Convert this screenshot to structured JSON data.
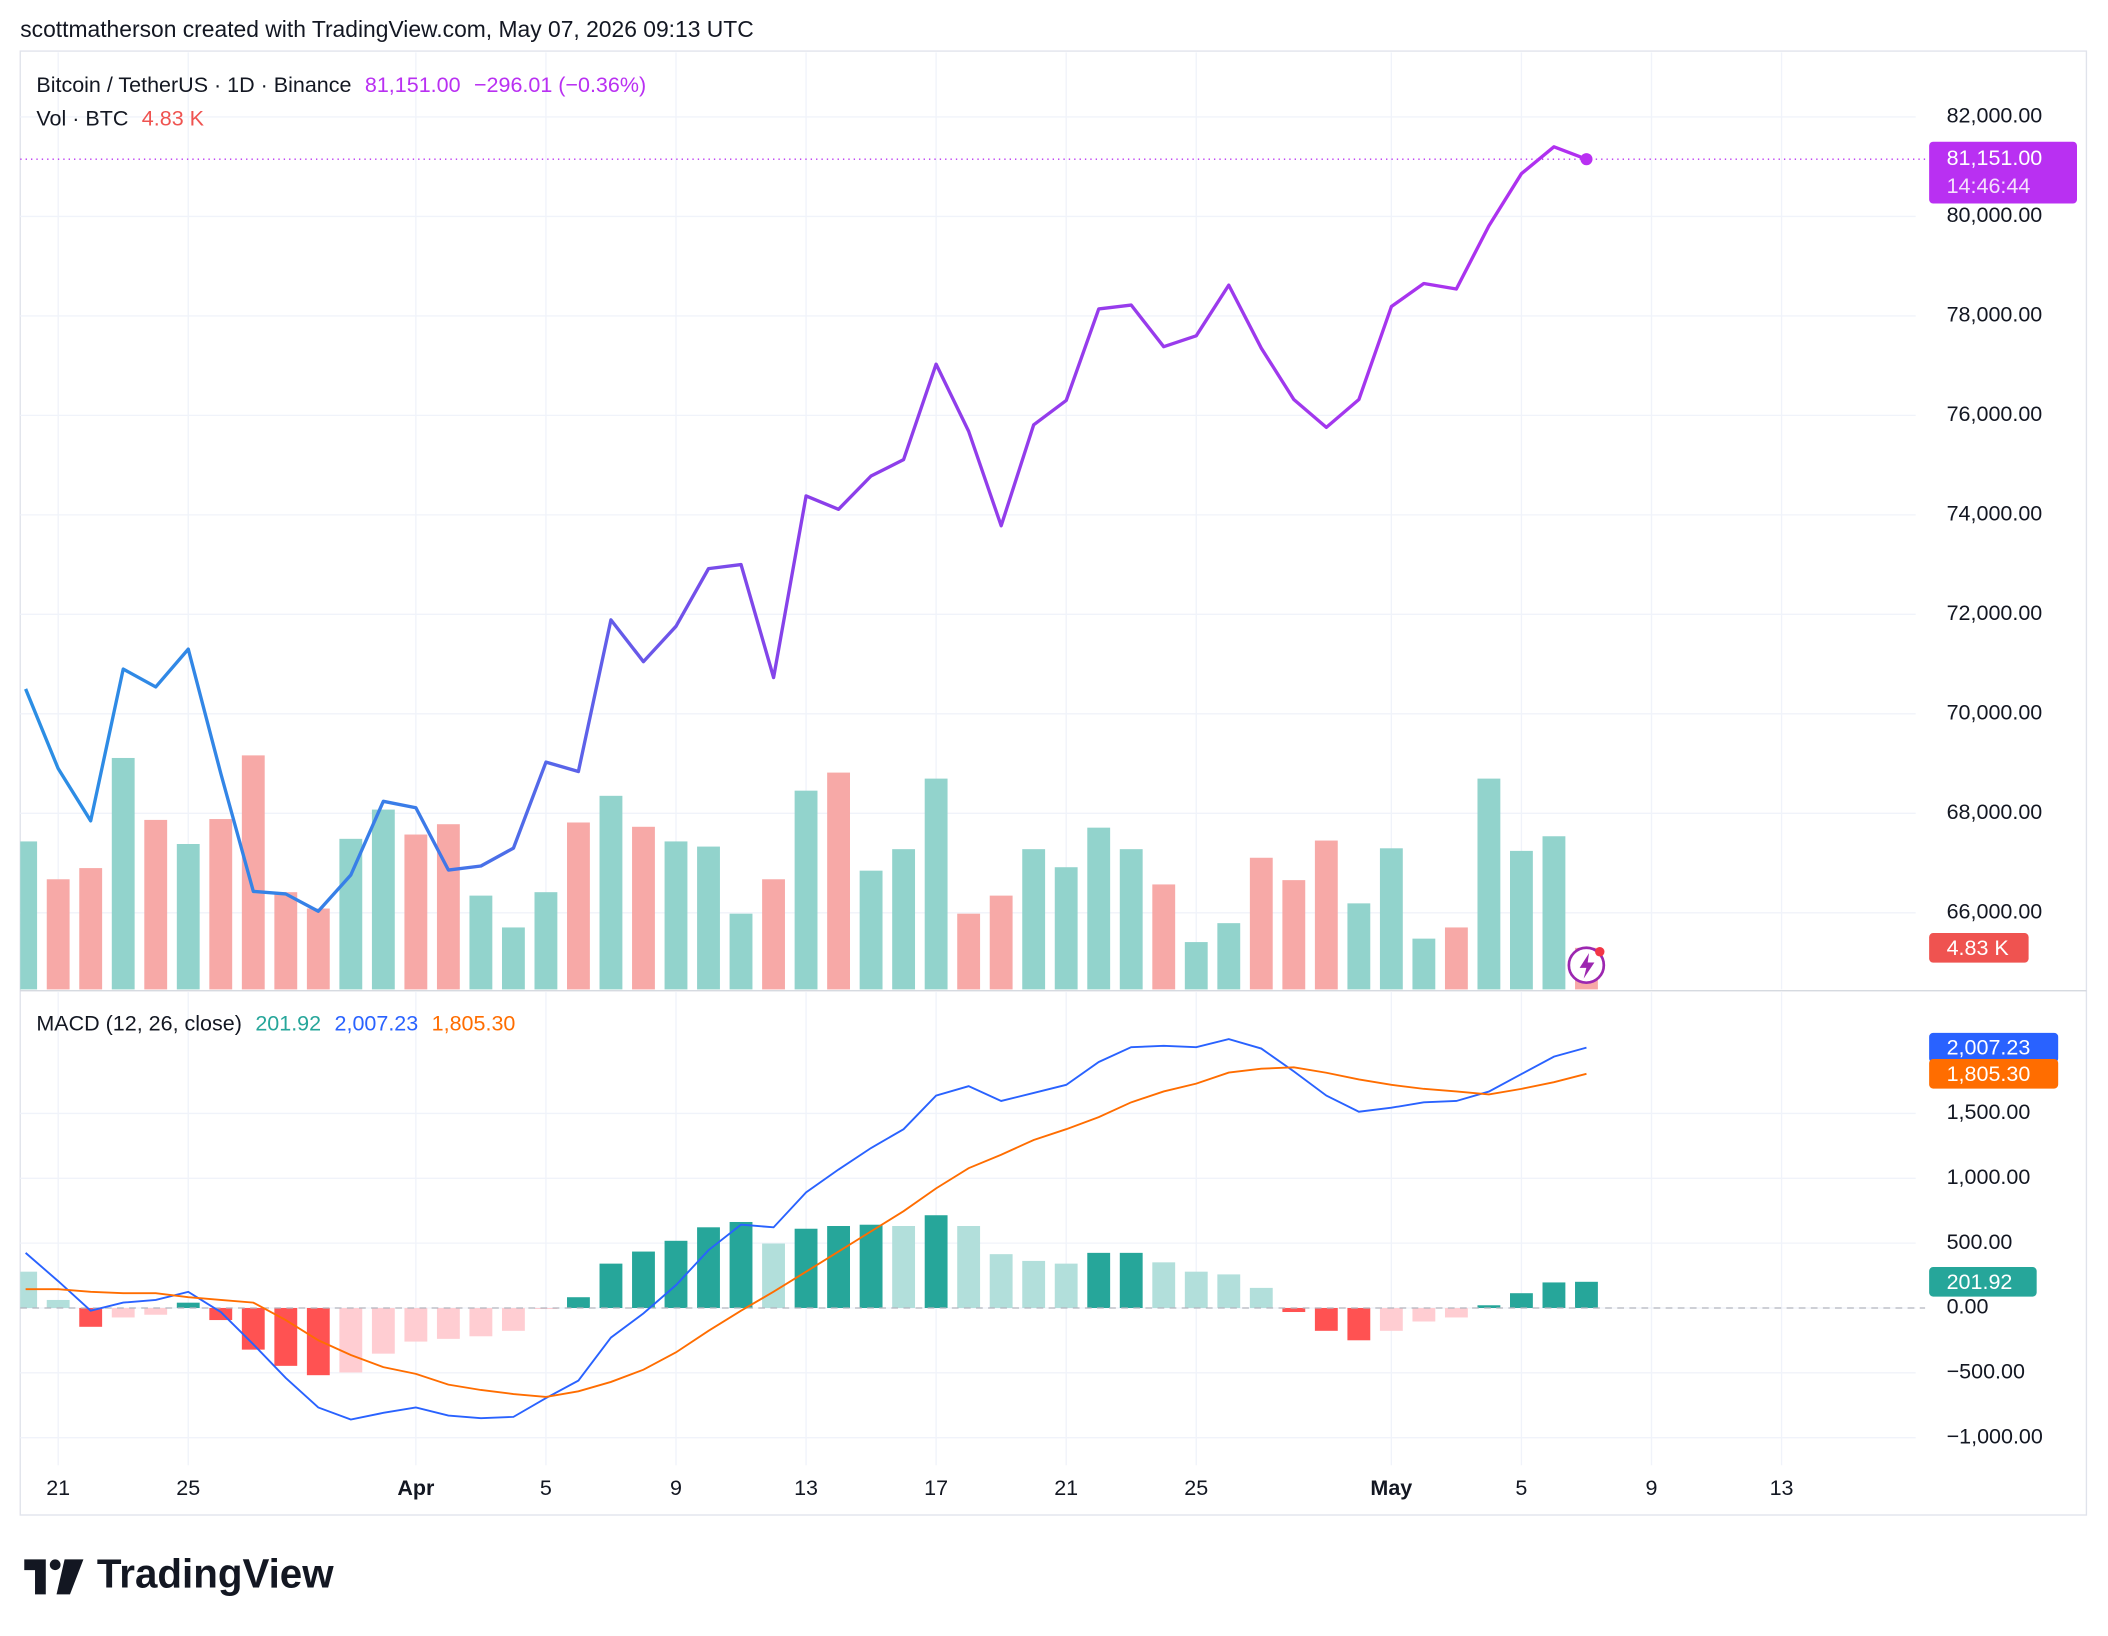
{
  "header": {
    "attribution": "scottmatherson created with TradingView.com, May 07, 2026 09:13 UTC"
  },
  "footer": {
    "logo": "TradingView"
  },
  "chart_data": [
    {
      "type": "line",
      "title": "Bitcoin / TetherUS · 1D · Binance",
      "last_label": "81,151.00",
      "change_label": "−296.01 (−0.36%)",
      "countdown": "14:46:44",
      "x": [
        "2026-03-20",
        "2026-03-21",
        "2026-03-22",
        "2026-03-23",
        "2026-03-24",
        "2026-03-25",
        "2026-03-26",
        "2026-03-27",
        "2026-03-28",
        "2026-03-29",
        "2026-03-30",
        "2026-03-31",
        "2026-04-01",
        "2026-04-02",
        "2026-04-03",
        "2026-04-04",
        "2026-04-05",
        "2026-04-06",
        "2026-04-07",
        "2026-04-08",
        "2026-04-09",
        "2026-04-10",
        "2026-04-11",
        "2026-04-12",
        "2026-04-13",
        "2026-04-14",
        "2026-04-15",
        "2026-04-16",
        "2026-04-17",
        "2026-04-18",
        "2026-04-19",
        "2026-04-20",
        "2026-04-21",
        "2026-04-22",
        "2026-04-23",
        "2026-04-24",
        "2026-04-25",
        "2026-04-26",
        "2026-04-27",
        "2026-04-28",
        "2026-04-29",
        "2026-04-30",
        "2026-05-01",
        "2026-05-02",
        "2026-05-03",
        "2026-05-04",
        "2026-05-05",
        "2026-05-06",
        "2026-05-07"
      ],
      "values": [
        70500,
        68900,
        67850,
        70900,
        70540,
        71300,
        68800,
        66430,
        66380,
        66030,
        66760,
        68240,
        68110,
        66860,
        66940,
        67300,
        69030,
        68840,
        71890,
        71050,
        71760,
        72920,
        73000,
        70730,
        74380,
        74110,
        74780,
        75110,
        77030,
        75680,
        73780,
        75810,
        76300,
        78140,
        78220,
        77380,
        77600,
        78620,
        77350,
        76320,
        75760,
        76320,
        78190,
        78650,
        78540,
        79810,
        80860,
        81400,
        81151
      ],
      "colors": [
        "#2b8fe4",
        "#3a7ce8",
        "#8a3fea",
        "#9a3bec",
        "#b22ff0"
      ],
      "last_color": "#b930f2",
      "ylim": [
        64460,
        83270
      ],
      "yticks": [
        {
          "value": 66000,
          "label": "66,000.00"
        },
        {
          "value": 68000,
          "label": "68,000.00"
        },
        {
          "value": 70000,
          "label": "70,000.00"
        },
        {
          "value": 72000,
          "label": "72,000.00"
        },
        {
          "value": 74000,
          "label": "74,000.00"
        },
        {
          "value": 76000,
          "label": "76,000.00"
        },
        {
          "value": 78000,
          "label": "78,000.00"
        },
        {
          "value": 80000,
          "label": "80,000.00"
        },
        {
          "value": 82000,
          "label": "82,000.00"
        }
      ],
      "grid": true
    },
    {
      "type": "bar",
      "title": "Vol · BTC",
      "last_label": "4.83 K",
      "last_color": "#ef5350",
      "values": [
        17.2,
        12.8,
        14.1,
        26.9,
        19.7,
        16.9,
        19.8,
        27.2,
        11.3,
        9.4,
        17.5,
        20.9,
        18.0,
        19.2,
        10.9,
        7.2,
        11.3,
        19.4,
        22.5,
        18.9,
        17.2,
        16.6,
        8.8,
        12.8,
        23.1,
        25.2,
        13.8,
        16.3,
        24.5,
        8.8,
        10.9,
        16.3,
        14.2,
        18.8,
        16.3,
        12.2,
        5.5,
        7.7,
        15.3,
        12.7,
        17.3,
        10.0,
        16.4,
        5.9,
        7.2,
        24.5,
        16.1,
        17.8,
        4.83
      ],
      "colors": [
        "#92d3cc",
        "#f7a9a7",
        "#f7a9a7",
        "#92d3cc",
        "#f7a9a7",
        "#92d3cc",
        "#f7a9a7",
        "#f7a9a7",
        "#f7a9a7",
        "#f7a9a7",
        "#92d3cc",
        "#92d3cc",
        "#f7a9a7",
        "#f7a9a7",
        "#92d3cc",
        "#92d3cc",
        "#92d3cc",
        "#f7a9a7",
        "#92d3cc",
        "#f7a9a7",
        "#92d3cc",
        "#92d3cc",
        "#92d3cc",
        "#f7a9a7",
        "#92d3cc",
        "#f7a9a7",
        "#92d3cc",
        "#92d3cc",
        "#92d3cc",
        "#f7a9a7",
        "#f7a9a7",
        "#92d3cc",
        "#92d3cc",
        "#92d3cc",
        "#92d3cc",
        "#f7a9a7",
        "#92d3cc",
        "#92d3cc",
        "#f7a9a7",
        "#f7a9a7",
        "#f7a9a7",
        "#92d3cc",
        "#92d3cc",
        "#92d3cc",
        "#f7a9a7",
        "#92d3cc",
        "#92d3cc",
        "#92d3cc",
        "#f7a9a7"
      ],
      "ylim": [
        0,
        100
      ]
    },
    {
      "type": "macd",
      "title": "MACD (12, 26, close)",
      "series": [
        {
          "kind": "histogram",
          "last_label": "201.92",
          "color": "#26a69a",
          "values": [
            280,
            62,
            -145,
            -73,
            -52,
            41,
            -93,
            -321,
            -446,
            -518,
            -497,
            -352,
            -259,
            -238,
            -218,
            -176,
            -8,
            83,
            342,
            435,
            518,
            622,
            663,
            497,
            611,
            632,
            642,
            632,
            715,
            632,
            415,
            363,
            342,
            425,
            425,
            352,
            280,
            259,
            155,
            -31,
            -176,
            -249,
            -176,
            -104,
            -73,
            21,
            114,
            197,
            201.92
          ],
          "colors": [
            "#b2dfdb",
            "#b2dfdb",
            "#ff5252",
            "#ffcdd2",
            "#ffcdd2",
            "#26a69a",
            "#ff5252",
            "#ff5252",
            "#ff5252",
            "#ff5252",
            "#ffcdd2",
            "#ffcdd2",
            "#ffcdd2",
            "#ffcdd2",
            "#ffcdd2",
            "#ffcdd2",
            "#ffcdd2",
            "#26a69a",
            "#26a69a",
            "#26a69a",
            "#26a69a",
            "#26a69a",
            "#26a69a",
            "#b2dfdb",
            "#26a69a",
            "#26a69a",
            "#26a69a",
            "#b2dfdb",
            "#26a69a",
            "#b2dfdb",
            "#b2dfdb",
            "#b2dfdb",
            "#b2dfdb",
            "#26a69a",
            "#26a69a",
            "#b2dfdb",
            "#b2dfdb",
            "#b2dfdb",
            "#b2dfdb",
            "#ff5252",
            "#ff5252",
            "#ff5252",
            "#ffcdd2",
            "#ffcdd2",
            "#ffcdd2",
            "#26a69a",
            "#26a69a",
            "#26a69a",
            "#26a69a"
          ]
        },
        {
          "kind": "line",
          "last_label": "2,007.23",
          "color": "#2962ff",
          "values": [
            425,
            207,
            -21,
            41,
            62,
            124,
            -31,
            -280,
            -539,
            -767,
            -860,
            -808,
            -767,
            -829,
            -850,
            -839,
            -694,
            -560,
            -228,
            -41,
            176,
            446,
            642,
            622,
            891,
            1067,
            1233,
            1378,
            1637,
            1710,
            1596,
            1658,
            1720,
            1896,
            2010,
            2021,
            2010,
            2073,
            2000,
            1824,
            1637,
            1513,
            1544,
            1585,
            1596,
            1668,
            1803,
            1938,
            2007.23
          ]
        },
        {
          "kind": "line",
          "last_label": "1,805.30",
          "color": "#ff6d00",
          "values": [
            145,
            145,
            124,
            114,
            114,
            83,
            62,
            41,
            -93,
            -249,
            -363,
            -456,
            -508,
            -591,
            -632,
            -663,
            -686,
            -643,
            -570,
            -476,
            -342,
            -176,
            -21,
            125,
            280,
            435,
            591,
            746,
            922,
            1078,
            1181,
            1295,
            1378,
            1471,
            1585,
            1669,
            1730,
            1814,
            1845,
            1855,
            1813,
            1762,
            1720,
            1689,
            1669,
            1647,
            1689,
            1741,
            1805.3
          ]
        }
      ],
      "ylim": [
        -1200,
        2400
      ],
      "yticks": [
        {
          "value": -1000,
          "label": "−1,000.00"
        },
        {
          "value": -500,
          "label": "−500.00"
        },
        {
          "value": 0,
          "label": "0.00"
        },
        {
          "value": 500,
          "label": "500.00"
        },
        {
          "value": 1000,
          "label": "1,000.00"
        },
        {
          "value": 1500,
          "label": "1,500.00"
        }
      ],
      "xlim": [
        "2026-03-19T20:00:00Z",
        "2026-05-17T03:00:00Z"
      ],
      "xticks": [
        {
          "value": "2026-03-21",
          "label": "21"
        },
        {
          "value": "2026-03-25",
          "label": "25"
        },
        {
          "value": "2026-04-01",
          "label": "Apr"
        },
        {
          "value": "2026-04-05",
          "label": "5"
        },
        {
          "value": "2026-04-09",
          "label": "9"
        },
        {
          "value": "2026-04-13",
          "label": "13"
        },
        {
          "value": "2026-04-17",
          "label": "17"
        },
        {
          "value": "2026-04-21",
          "label": "21"
        },
        {
          "value": "2026-04-25",
          "label": "25"
        },
        {
          "value": "2026-05-01",
          "label": "May"
        },
        {
          "value": "2026-05-05",
          "label": "5"
        },
        {
          "value": "2026-05-09",
          "label": "9"
        },
        {
          "value": "2026-05-13",
          "label": "13"
        }
      ],
      "grid": true
    }
  ]
}
